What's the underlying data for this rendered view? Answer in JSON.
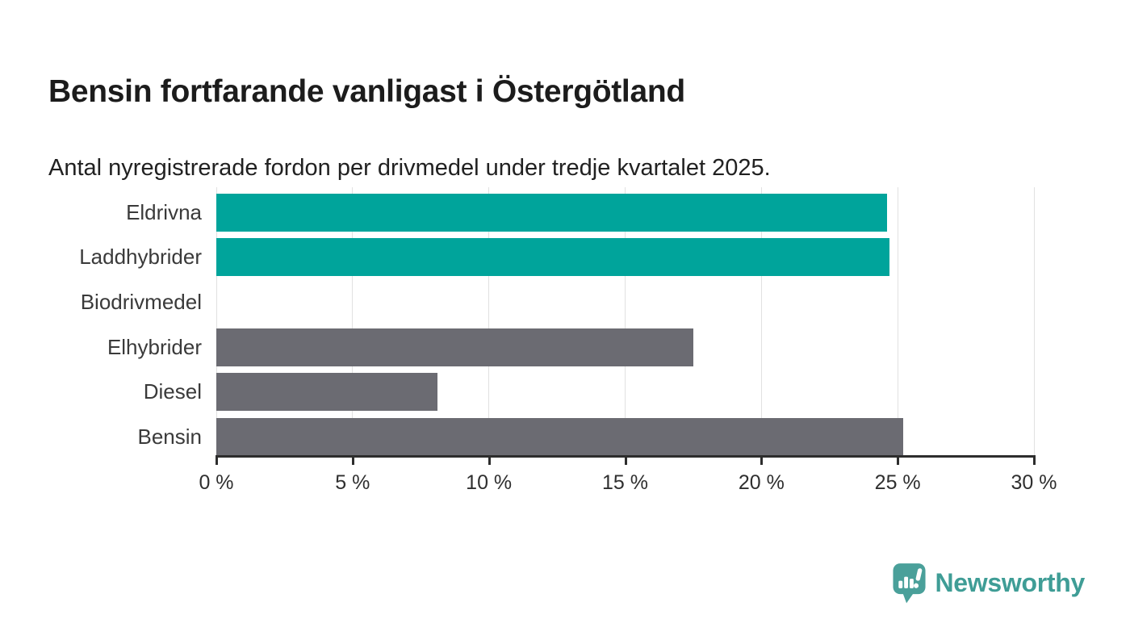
{
  "header": {
    "title": "Bensin fortfarande vanligast i Östergötland",
    "subtitle": "Antal nyregistrerade fordon per drivmedel under tredje kvartalet 2025."
  },
  "chart_data": {
    "type": "bar",
    "orientation": "horizontal",
    "title": "Bensin fortfarande vanligast i Östergötland",
    "subtitle": "Antal nyregistrerade fordon per drivmedel under tredje kvartalet 2025.",
    "categories": [
      "Eldrivna",
      "Laddhybrider",
      "Biodrivmedel",
      "Elhybrider",
      "Diesel",
      "Bensin"
    ],
    "values": [
      24.6,
      24.7,
      0,
      17.5,
      8.1,
      25.2
    ],
    "value_unit": "%",
    "bar_colors": [
      "#00a49b",
      "#00a49b",
      "#6b6b72",
      "#6b6b72",
      "#6b6b72",
      "#6b6b72"
    ],
    "xlim": [
      0,
      30
    ],
    "x_ticks": [
      0,
      5,
      10,
      15,
      20,
      25,
      30
    ],
    "x_tick_labels": [
      "0 %",
      "5 %",
      "10 %",
      "15 %",
      "20 %",
      "25 %",
      "30 %"
    ],
    "grid": true,
    "legend": false,
    "gridline_color": "#e1e1e1",
    "axis_color": "#2d2d2d"
  },
  "branding": {
    "logo_text": "Newsworthy",
    "logo_icon": "newsworthy-speech-bubble-chart-icon",
    "logo_color": "#3f9d96"
  },
  "colors": {
    "background": "#ffffff",
    "teal": "#00a49b",
    "gray": "#6b6b72"
  }
}
